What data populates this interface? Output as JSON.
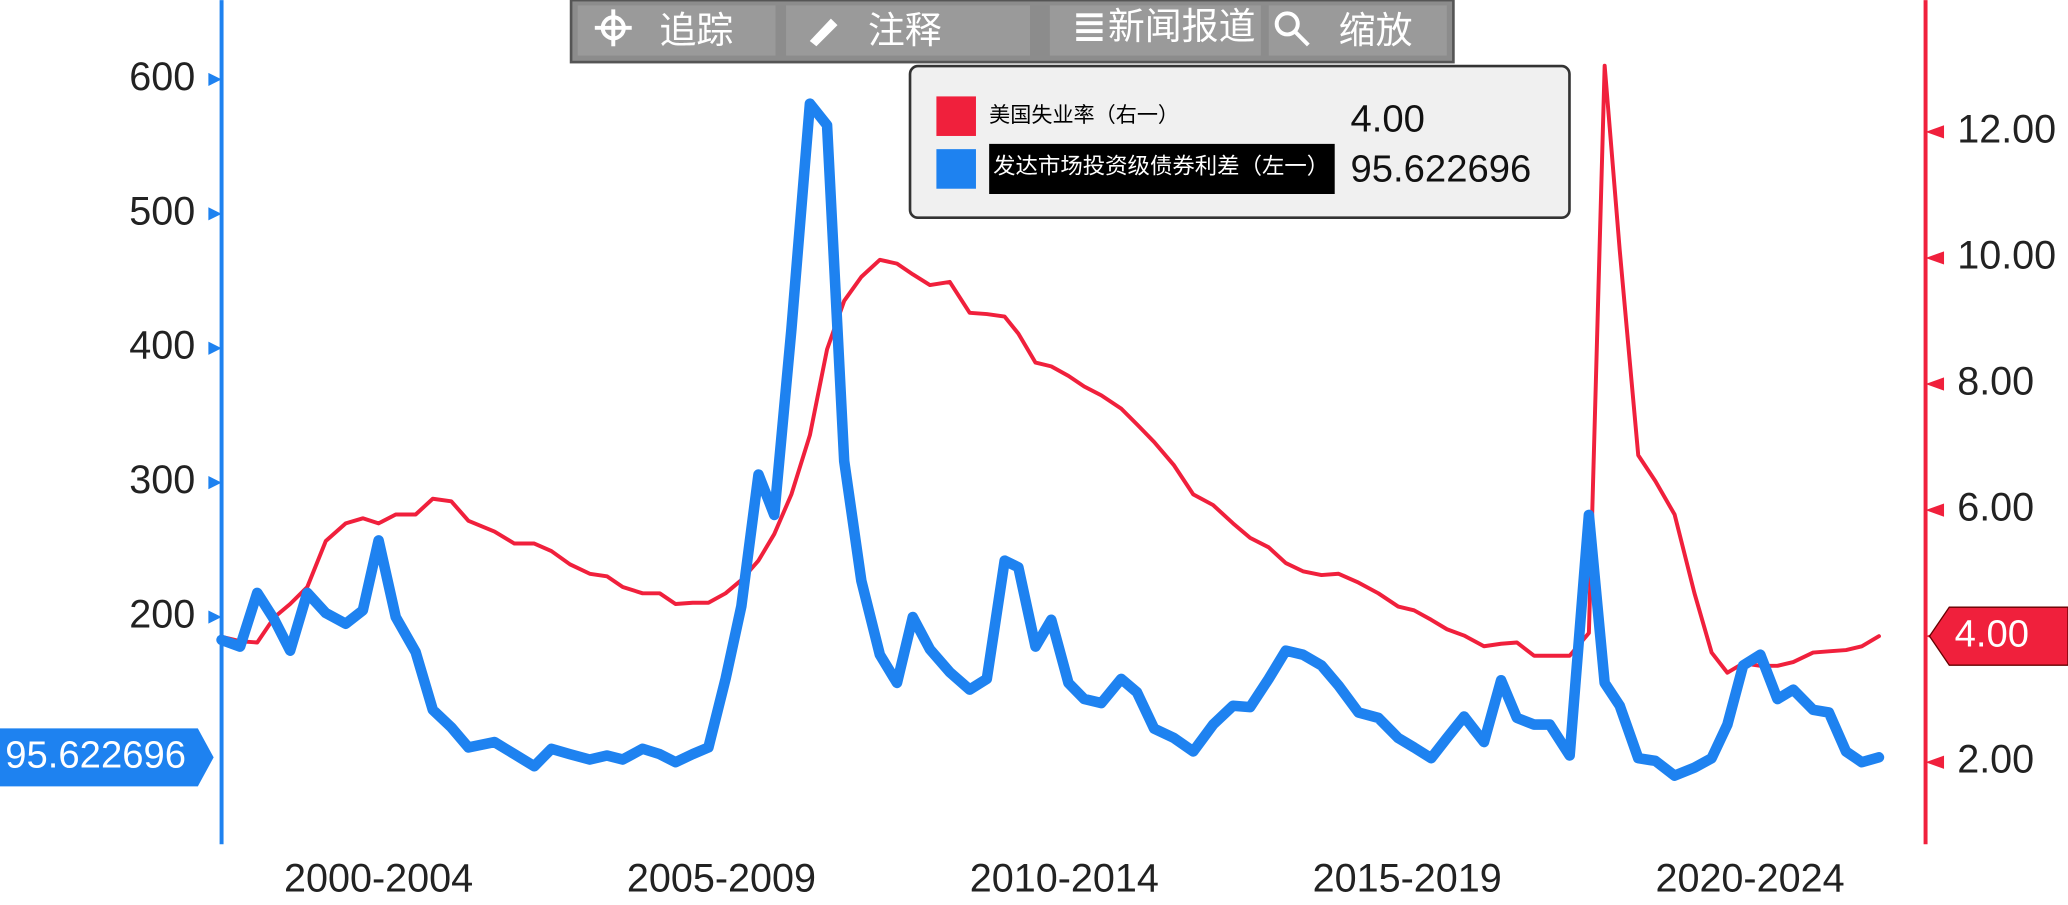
{
  "toolbar": [
    "追踪",
    "注释",
    "新闻报道",
    "缩放"
  ],
  "chart_data": {
    "type": "line",
    "x": [
      2000.21,
      2000.48,
      2000.73,
      2000.98,
      2001.21,
      2001.46,
      2001.73,
      2002.02,
      2002.27,
      2002.5,
      2002.75,
      2003.04,
      2003.29,
      2003.56,
      2003.81,
      2004.19,
      2004.48,
      2004.77,
      2005.02,
      2005.29,
      2005.58,
      2005.83,
      2006.06,
      2006.35,
      2006.6,
      2006.83,
      2007.08,
      2007.31,
      2007.56,
      2007.79,
      2008.04,
      2008.27,
      2008.52,
      2008.79,
      2009.04,
      2009.29,
      2009.54,
      2009.81,
      2010.06,
      2010.29,
      2010.54,
      2010.83,
      2011.12,
      2011.37,
      2011.63,
      2011.83,
      2012.08,
      2012.31,
      2012.56,
      2012.79,
      2013.04,
      2013.33,
      2013.56,
      2013.81,
      2014.1,
      2014.38,
      2014.67,
      2014.96,
      2015.21,
      2015.48,
      2015.73,
      2015.98,
      2016.25,
      2016.5,
      2016.79,
      2017.08,
      2017.37,
      2017.6,
      2017.85,
      2018.08,
      2018.33,
      2018.62,
      2018.87,
      2019.1,
      2019.35,
      2019.58,
      2019.87,
      2020.15,
      2020.38,
      2020.6,
      2020.87,
      2021.12,
      2021.4,
      2021.69,
      2021.94,
      2022.17,
      2022.4,
      2022.65,
      2022.9,
      2023.13,
      2023.42,
      2023.65,
      2023.9,
      2024.13,
      2024.38
    ],
    "xlim": [
      2000.21,
      2025.06
    ],
    "xticks": [
      {
        "value": 2002.5,
        "label": "2000-2004"
      },
      {
        "value": 2007.5,
        "label": "2005-2009"
      },
      {
        "value": 2012.5,
        "label": "2010-2014"
      },
      {
        "value": 2017.5,
        "label": "2015-2019"
      },
      {
        "value": 2022.5,
        "label": "2020-2024"
      }
    ],
    "ylim": [
      31,
      659
    ],
    "yticks": [
      200,
      300,
      400,
      500,
      600
    ],
    "y2lim": [
      0.7,
      14.09
    ],
    "y2ticks": [
      {
        "value": 2,
        "label": "2.00"
      },
      {
        "value": 4,
        "label": "4.00"
      },
      {
        "value": 6,
        "label": "6.00"
      },
      {
        "value": 8,
        "label": "8.00"
      },
      {
        "value": 10,
        "label": "10.00"
      },
      {
        "value": 12,
        "label": "12.00"
      }
    ],
    "series": [
      {
        "name": "美国失业率（右一）",
        "color": "#f0203c",
        "axis": "y2",
        "values": [
          3.99,
          3.92,
          3.9,
          4.3,
          4.51,
          4.78,
          5.51,
          5.79,
          5.87,
          5.79,
          5.93,
          5.93,
          6.18,
          6.14,
          5.83,
          5.66,
          5.47,
          5.47,
          5.35,
          5.14,
          4.99,
          4.95,
          4.78,
          4.68,
          4.68,
          4.51,
          4.53,
          4.53,
          4.68,
          4.89,
          5.2,
          5.62,
          6.25,
          7.19,
          8.55,
          9.32,
          9.7,
          9.97,
          9.91,
          9.74,
          9.57,
          9.62,
          9.13,
          9.11,
          9.07,
          8.8,
          8.34,
          8.28,
          8.13,
          7.96,
          7.82,
          7.61,
          7.36,
          7.08,
          6.71,
          6.25,
          6.08,
          5.79,
          5.56,
          5.41,
          5.16,
          5.03,
          4.97,
          4.99,
          4.85,
          4.68,
          4.47,
          4.41,
          4.26,
          4.11,
          4.01,
          3.84,
          3.88,
          3.9,
          3.69,
          3.69,
          3.69,
          4.05,
          13.05,
          10.12,
          6.87,
          6.46,
          5.93,
          4.68,
          3.74,
          3.42,
          3.57,
          3.53,
          3.53,
          3.59,
          3.74,
          3.76,
          3.78,
          3.84,
          4.0
        ],
        "value_labels": [
          null,
          null,
          null,
          null,
          null,
          null,
          null,
          null,
          null,
          null,
          null,
          null,
          null,
          null,
          null,
          null,
          null,
          null,
          null,
          null,
          null,
          null,
          null,
          null,
          null,
          null,
          null,
          null,
          null,
          null,
          null,
          null,
          null,
          null,
          null,
          null,
          null,
          null,
          null,
          null,
          null,
          null,
          null,
          null,
          null,
          null,
          null,
          null,
          null,
          null,
          null,
          null,
          null,
          null,
          null,
          null,
          null,
          null,
          null,
          null,
          null,
          null,
          null,
          null,
          null,
          null,
          null,
          null,
          null,
          null,
          null,
          null,
          null,
          null,
          null,
          null,
          null,
          null,
          null,
          null,
          null,
          null,
          null,
          null,
          null,
          null,
          null,
          null,
          null,
          null,
          null,
          null,
          null,
          null,
          "4.00"
        ]
      },
      {
        "name": "发达市场投资级债券利差（左一）",
        "color": "#1e82f0",
        "axis": "y",
        "values": [
          183,
          178,
          218,
          198,
          175,
          218,
          203,
          195,
          205,
          257,
          200,
          174,
          131,
          118,
          103,
          107,
          98,
          89,
          102,
          98,
          94,
          97,
          94,
          102,
          98,
          92,
          98,
          103,
          154,
          208,
          306,
          276,
          414,
          582,
          566,
          316,
          227,
          172,
          151,
          200,
          176,
          159,
          146,
          154,
          242,
          237,
          178,
          198,
          151,
          139,
          136,
          154,
          144,
          117,
          110,
          100,
          120,
          134,
          133,
          154,
          175,
          172,
          164,
          149,
          129,
          125,
          110,
          103,
          95,
          110,
          126,
          107,
          153,
          125,
          120,
          120,
          97,
          276,
          151,
          134,
          95,
          93,
          82,
          88,
          95,
          120,
          164,
          172,
          139,
          146,
          131,
          129,
          100,
          92,
          95.622696
        ]
      }
    ]
  }
}
